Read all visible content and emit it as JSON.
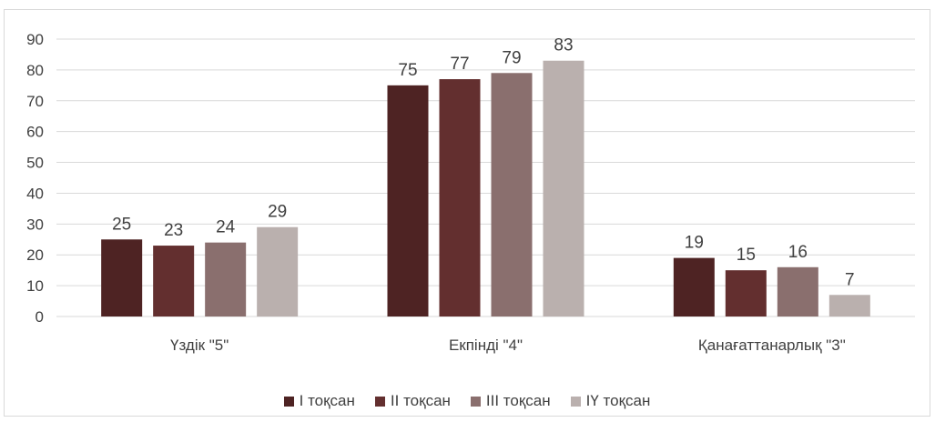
{
  "chart_data": {
    "type": "bar",
    "categories": [
      "Үздік \"5\"",
      "Екпінді \"4\"",
      "Қанағаттанарлық \"3\""
    ],
    "series": [
      {
        "name": "І тоқсан",
        "values": [
          25,
          75,
          19
        ],
        "color": "#4e2323"
      },
      {
        "name": "ІІ тоқсан",
        "values": [
          23,
          77,
          15
        ],
        "color": "#632f2f"
      },
      {
        "name": "ІІІ тоқсан",
        "values": [
          24,
          79,
          16
        ],
        "color": "#8a6f6e"
      },
      {
        "name": "ІҮ тоқсан",
        "values": [
          29,
          83,
          7
        ],
        "color": "#bab0ae"
      }
    ],
    "ylim": [
      0,
      90
    ],
    "yticks": [
      "0",
      "10",
      "20",
      "30",
      "40",
      "50",
      "60",
      "70",
      "80",
      "90"
    ],
    "grid": true,
    "legend_position": "bottom"
  }
}
